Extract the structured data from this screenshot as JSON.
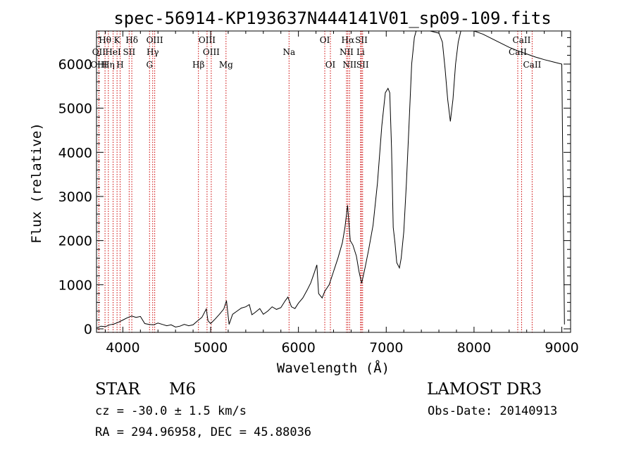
{
  "chart_data": {
    "type": "line",
    "title": "spec-56914-KP193637N444141V01_sp09-109.fits",
    "xlabel": "Wavelength (Å)",
    "ylabel": "Flux (relative)",
    "xlim": [
      3700,
      9100
    ],
    "ylim": [
      -80,
      6750
    ],
    "x_ticks": [
      4000,
      5000,
      6000,
      7000,
      8000,
      9000
    ],
    "y_ticks": [
      0,
      1000,
      2000,
      3000,
      4000,
      5000,
      6000
    ],
    "series": [
      {
        "name": "spectrum",
        "points": [
          [
            3700,
            20
          ],
          [
            3750,
            60
          ],
          [
            3800,
            50
          ],
          [
            3850,
            90
          ],
          [
            3900,
            110
          ],
          [
            3950,
            150
          ],
          [
            4000,
            200
          ],
          [
            4050,
            250
          ],
          [
            4100,
            290
          ],
          [
            4150,
            260
          ],
          [
            4200,
            280
          ],
          [
            4250,
            120
          ],
          [
            4300,
            100
          ],
          [
            4350,
            90
          ],
          [
            4400,
            130
          ],
          [
            4450,
            100
          ],
          [
            4500,
            70
          ],
          [
            4550,
            90
          ],
          [
            4600,
            40
          ],
          [
            4650,
            60
          ],
          [
            4700,
            100
          ],
          [
            4750,
            70
          ],
          [
            4800,
            90
          ],
          [
            4850,
            180
          ],
          [
            4900,
            260
          ],
          [
            4950,
            450
          ],
          [
            4970,
            180
          ],
          [
            5000,
            120
          ],
          [
            5050,
            220
          ],
          [
            5100,
            330
          ],
          [
            5150,
            450
          ],
          [
            5180,
            640
          ],
          [
            5210,
            100
          ],
          [
            5250,
            330
          ],
          [
            5300,
            400
          ],
          [
            5350,
            470
          ],
          [
            5400,
            500
          ],
          [
            5440,
            550
          ],
          [
            5470,
            320
          ],
          [
            5500,
            360
          ],
          [
            5560,
            460
          ],
          [
            5600,
            330
          ],
          [
            5650,
            400
          ],
          [
            5700,
            500
          ],
          [
            5750,
            440
          ],
          [
            5800,
            480
          ],
          [
            5850,
            640
          ],
          [
            5880,
            720
          ],
          [
            5920,
            500
          ],
          [
            5960,
            460
          ],
          [
            6000,
            580
          ],
          [
            6050,
            700
          ],
          [
            6100,
            880
          ],
          [
            6140,
            1040
          ],
          [
            6180,
            1270
          ],
          [
            6210,
            1450
          ],
          [
            6230,
            800
          ],
          [
            6270,
            700
          ],
          [
            6300,
            850
          ],
          [
            6350,
            1000
          ],
          [
            6400,
            1300
          ],
          [
            6450,
            1600
          ],
          [
            6500,
            1950
          ],
          [
            6530,
            2300
          ],
          [
            6560,
            2800
          ],
          [
            6590,
            2000
          ],
          [
            6620,
            1900
          ],
          [
            6660,
            1650
          ],
          [
            6690,
            1300
          ],
          [
            6720,
            1030
          ],
          [
            6760,
            1400
          ],
          [
            6800,
            1800
          ],
          [
            6850,
            2350
          ],
          [
            6900,
            3300
          ],
          [
            6950,
            4600
          ],
          [
            6990,
            5350
          ],
          [
            7020,
            5450
          ],
          [
            7040,
            5350
          ],
          [
            7060,
            4100
          ],
          [
            7080,
            2300
          ],
          [
            7100,
            1950
          ],
          [
            7120,
            1500
          ],
          [
            7150,
            1380
          ],
          [
            7170,
            1600
          ],
          [
            7200,
            2200
          ],
          [
            7230,
            3300
          ],
          [
            7260,
            4650
          ],
          [
            7290,
            6000
          ],
          [
            7320,
            6600
          ],
          [
            7340,
            6750
          ],
          [
            7400,
            6750
          ],
          [
            7500,
            6750
          ],
          [
            7600,
            6700
          ],
          [
            7640,
            6500
          ],
          [
            7670,
            5900
          ],
          [
            7700,
            5200
          ],
          [
            7730,
            4700
          ],
          [
            7760,
            5200
          ],
          [
            7790,
            6000
          ],
          [
            7820,
            6500
          ],
          [
            7850,
            6750
          ],
          [
            7900,
            6750
          ],
          [
            8000,
            6750
          ],
          [
            8100,
            6680
          ],
          [
            8200,
            6580
          ],
          [
            8300,
            6480
          ],
          [
            8400,
            6380
          ],
          [
            8500,
            6300
          ],
          [
            8600,
            6230
          ],
          [
            8700,
            6160
          ],
          [
            8800,
            6100
          ],
          [
            8900,
            6050
          ],
          [
            9000,
            6000
          ],
          [
            9030,
            100
          ]
        ]
      }
    ],
    "spectral_lines": [
      {
        "label": "Hθ",
        "wavelength": 3797,
        "row": 0
      },
      {
        "label": "OII",
        "wavelength": 3727,
        "row": 1
      },
      {
        "label": "Hη",
        "wavelength": 3835,
        "row": 2
      },
      {
        "label": "OIII",
        "wavelength": 3727,
        "row": 2
      },
      {
        "label": "K",
        "wavelength": 3934,
        "row": 0
      },
      {
        "label": "HeI",
        "wavelength": 3889,
        "row": 1
      },
      {
        "label": "H",
        "wavelength": 3969,
        "row": 2
      },
      {
        "label": "SII",
        "wavelength": 4072,
        "row": 1
      },
      {
        "label": "Hδ",
        "wavelength": 4102,
        "row": 0
      },
      {
        "label": "OIII",
        "wavelength": 4363,
        "row": 0
      },
      {
        "label": "Hγ",
        "wavelength": 4340,
        "row": 1
      },
      {
        "label": "G",
        "wavelength": 4304,
        "row": 2
      },
      {
        "label": "OIII",
        "wavelength": 4959,
        "row": 0
      },
      {
        "label": "OIII",
        "wavelength": 5007,
        "row": 1
      },
      {
        "label": "Hβ",
        "wavelength": 4861,
        "row": 2
      },
      {
        "label": "Mg",
        "wavelength": 5175,
        "row": 2
      },
      {
        "label": "Na",
        "wavelength": 5893,
        "row": 1
      },
      {
        "label": "OI",
        "wavelength": 6300,
        "row": 0
      },
      {
        "label": "OI",
        "wavelength": 6364,
        "row": 2
      },
      {
        "label": "Hα",
        "wavelength": 6563,
        "row": 0
      },
      {
        "label": "SII",
        "wavelength": 6717,
        "row": 0
      },
      {
        "label": "NII",
        "wavelength": 6548,
        "row": 1
      },
      {
        "label": "Li",
        "wavelength": 6708,
        "row": 1
      },
      {
        "label": "NII",
        "wavelength": 6583,
        "row": 2
      },
      {
        "label": "SII",
        "wavelength": 6731,
        "row": 2
      },
      {
        "label": "CaII",
        "wavelength": 8542,
        "row": 0
      },
      {
        "label": "CaII",
        "wavelength": 8498,
        "row": 1
      },
      {
        "label": "CaII",
        "wavelength": 8662,
        "row": 2
      }
    ],
    "grid": false,
    "legend": "none"
  },
  "info": {
    "object_type": "STAR",
    "subclass": "M6",
    "survey": "LAMOST DR3",
    "cz": "cz = -30.0 ± 1.5 km/s",
    "obs_date": "Obs-Date: 20140913",
    "coords": "RA = 294.96958, DEC =  45.88036"
  },
  "colors": {
    "line": "#000000",
    "marker": "#cc0000"
  }
}
